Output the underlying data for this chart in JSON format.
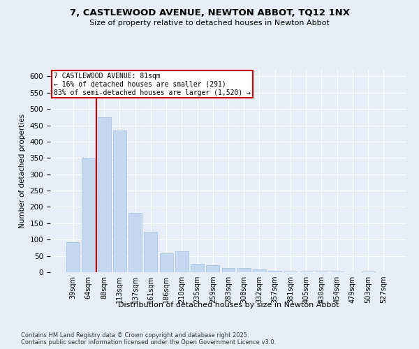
{
  "title_line1": "7, CASTLEWOOD AVENUE, NEWTON ABBOT, TQ12 1NX",
  "title_line2": "Size of property relative to detached houses in Newton Abbot",
  "xlabel": "Distribution of detached houses by size in Newton Abbot",
  "ylabel": "Number of detached properties",
  "categories": [
    "39sqm",
    "64sqm",
    "88sqm",
    "113sqm",
    "137sqm",
    "161sqm",
    "186sqm",
    "210sqm",
    "235sqm",
    "259sqm",
    "283sqm",
    "308sqm",
    "332sqm",
    "357sqm",
    "381sqm",
    "405sqm",
    "430sqm",
    "454sqm",
    "479sqm",
    "503sqm",
    "527sqm"
  ],
  "values": [
    92,
    350,
    475,
    435,
    181,
    125,
    58,
    65,
    25,
    22,
    12,
    12,
    8,
    4,
    2,
    2,
    2,
    2,
    1,
    2,
    1
  ],
  "bar_color": "#c5d8f0",
  "bar_edge_color": "#a8c4e0",
  "reference_line_x": 1.5,
  "annotation_line1": "7 CASTLEWOOD AVENUE: 81sqm",
  "annotation_line2": "← 16% of detached houses are smaller (291)",
  "annotation_line3": "83% of semi-detached houses are larger (1,520) →",
  "annotation_box_color": "#ffffff",
  "annotation_box_edge_color": "#cc0000",
  "red_line_color": "#cc0000",
  "ylim": [
    0,
    620
  ],
  "yticks": [
    0,
    50,
    100,
    150,
    200,
    250,
    300,
    350,
    400,
    450,
    500,
    550,
    600
  ],
  "footer_line1": "Contains HM Land Registry data © Crown copyright and database right 2025.",
  "footer_line2": "Contains public sector information licensed under the Open Government Licence v3.0.",
  "background_color": "#e8eef7",
  "grid_color": "#ffffff"
}
